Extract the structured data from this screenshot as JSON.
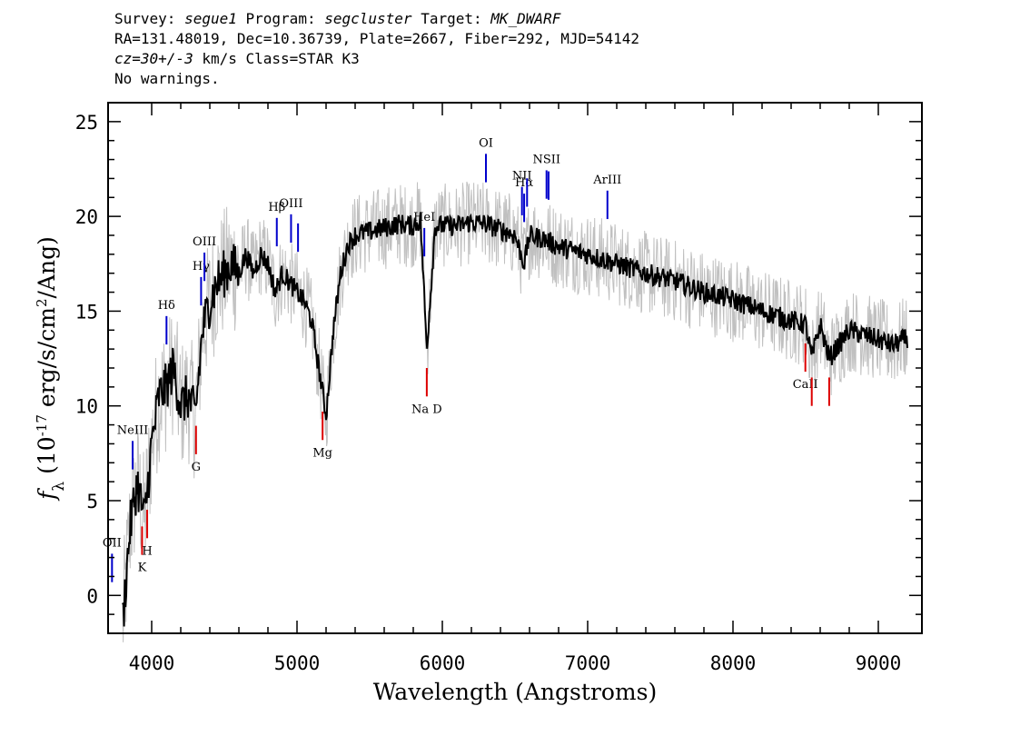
{
  "header": {
    "survey_label": "Survey:",
    "survey": "segue1",
    "program_label": "Program:",
    "program": "segcluster",
    "target_label": "Target:",
    "target": "MK_DWARF",
    "line2": "RA=131.48019, Dec=10.36739, Plate=2667, Fiber=292, MJD=54142",
    "cz_value": "cz=30+/-3",
    "cz_rest": " km/s Class=STAR K3",
    "line4": "No warnings."
  },
  "chart_data": {
    "type": "line",
    "title": "",
    "xlabel": "Wavelength (Angstroms)",
    "ylabel": "f_λ (10^-17 erg/s/cm^2/Ang)",
    "xlim": [
      3700,
      9300
    ],
    "ylim": [
      -2,
      26
    ],
    "x_ticks": [
      4000,
      5000,
      6000,
      7000,
      8000,
      9000
    ],
    "y_ticks": [
      0,
      5,
      10,
      15,
      20,
      25
    ],
    "x_tick_labels": [
      "4000",
      "5000",
      "6000",
      "7000",
      "8000",
      "9000"
    ],
    "y_tick_labels": [
      "0",
      "5",
      "10",
      "15",
      "20",
      "25"
    ],
    "grid": false,
    "series": [
      {
        "color": "#000000",
        "noise_color": "#c0c0c0",
        "x": [
          3800,
          3850,
          3900,
          3950,
          4000,
          4050,
          4100,
          4150,
          4200,
          4250,
          4300,
          4350,
          4400,
          4450,
          4500,
          4550,
          4600,
          4650,
          4700,
          4750,
          4800,
          4850,
          4900,
          4950,
          5000,
          5050,
          5100,
          5150,
          5200,
          5250,
          5300,
          5350,
          5400,
          5500,
          5600,
          5700,
          5800,
          5850,
          5893,
          5950,
          6000,
          6100,
          6200,
          6300,
          6400,
          6500,
          6563,
          6600,
          6700,
          6800,
          6900,
          7000,
          7200,
          7400,
          7600,
          7800,
          8000,
          8200,
          8400,
          8500,
          8542,
          8600,
          8662,
          8800,
          9000,
          9100,
          9200
        ],
        "y": [
          -1.5,
          3.5,
          6.0,
          4.0,
          8.0,
          10.5,
          11.0,
          12.0,
          10.0,
          10.5,
          9.5,
          14.0,
          15.5,
          16.5,
          17.0,
          17.5,
          17.0,
          18.0,
          17.0,
          18.0,
          17.5,
          16.0,
          17.0,
          16.5,
          16.0,
          15.5,
          14.5,
          12.0,
          9.5,
          14.0,
          17.0,
          18.5,
          19.0,
          19.2,
          19.4,
          19.6,
          19.5,
          19.8,
          13.0,
          19.5,
          19.5,
          19.5,
          19.7,
          19.6,
          19.3,
          19.0,
          17.5,
          19.0,
          18.8,
          18.4,
          18.2,
          18.0,
          17.5,
          17.0,
          16.6,
          16.0,
          15.6,
          15.0,
          14.5,
          14.3,
          12.5,
          14.3,
          12.5,
          14.0,
          13.5,
          13.2,
          13.6
        ]
      }
    ],
    "annotations": {
      "emission": [
        {
          "label": "OII",
          "wave": 3727
        },
        {
          "label": "NeIII",
          "wave": 3869
        },
        {
          "label": "Hδ",
          "wave": 4102
        },
        {
          "label": "Hγ",
          "wave": 4340
        },
        {
          "label": "OIII",
          "wave": 4363
        },
        {
          "label": "Hβ",
          "wave": 4861
        },
        {
          "label": "OIII",
          "wave": 4959
        },
        {
          "label": "",
          "wave": 5007
        },
        {
          "label": "HeI",
          "wave": 5876
        },
        {
          "label": "OI",
          "wave": 6300
        },
        {
          "label": "NII",
          "wave": 6548
        },
        {
          "label": "Hα",
          "wave": 6563
        },
        {
          "label": "",
          "wave": 6583
        },
        {
          "label": "NSII",
          "wave": 6717
        },
        {
          "label": "",
          "wave": 6731
        },
        {
          "label": "ArIII",
          "wave": 7136
        }
      ],
      "absorption": [
        {
          "label": "K",
          "wave": 3934
        },
        {
          "label": "H",
          "wave": 3969
        },
        {
          "label": "G",
          "wave": 4305
        },
        {
          "label": "Mg",
          "wave": 5176
        },
        {
          "label": "Na D",
          "wave": 5893
        },
        {
          "label": "CaII",
          "wave": 8498
        },
        {
          "label": "",
          "wave": 8542
        },
        {
          "label": "",
          "wave": 8662
        }
      ],
      "emission_color": "#0000cc",
      "absorption_color": "#dd0000"
    }
  }
}
